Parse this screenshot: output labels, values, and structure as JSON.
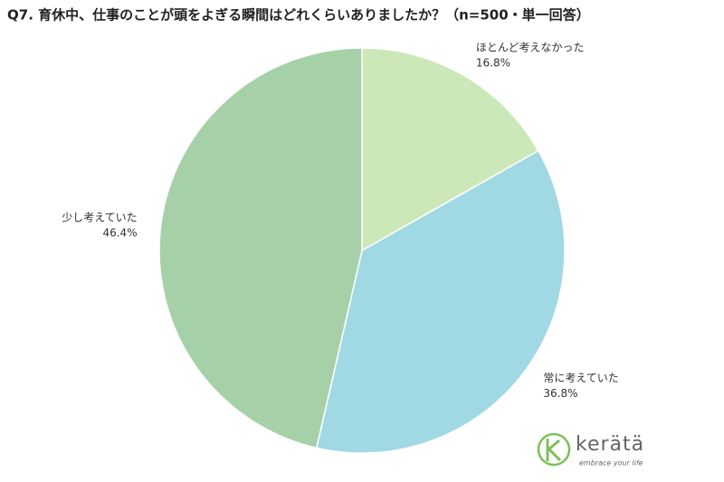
{
  "chart_data": {
    "type": "pie",
    "title": "Q7. 育休中、仕事のことが頭をよぎる瞬間はどれくらいありましたか？（n=500・単一回答）",
    "categories": [
      "ほとんど考えなかった",
      "常に考えていた",
      "少し考えていた"
    ],
    "values": [
      16.8,
      36.8,
      46.4
    ],
    "value_labels": [
      "16.8%",
      "36.8%",
      "46.4%"
    ],
    "colors": [
      "#cde8b8",
      "#a0d9e3",
      "#a6d1a8"
    ]
  },
  "logo": {
    "name": "kerätä",
    "tagline": "embrace your life"
  }
}
